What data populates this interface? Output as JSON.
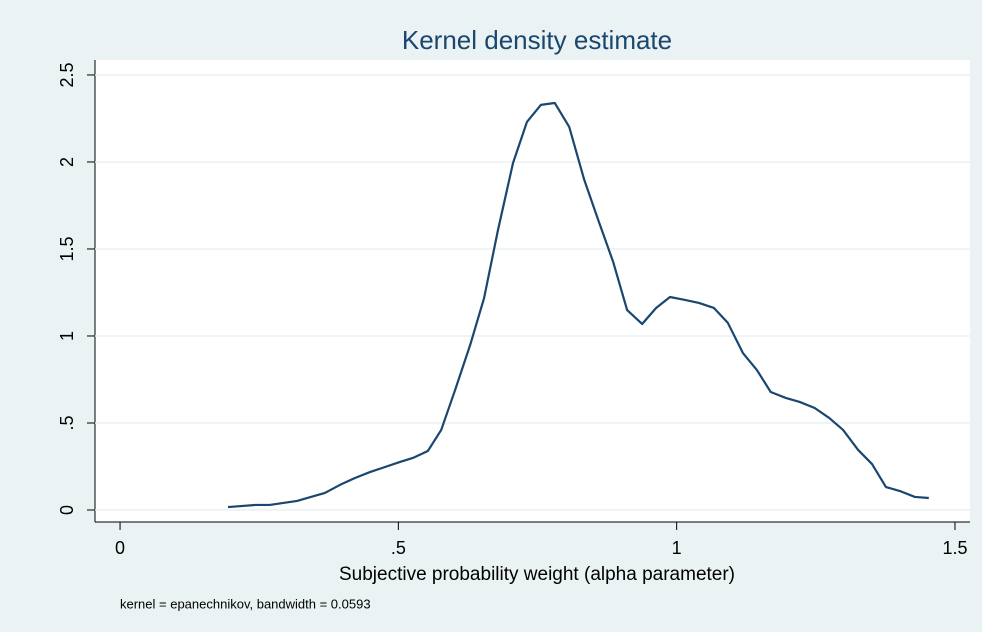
{
  "chart_data": {
    "type": "line",
    "title": "Kernel density estimate",
    "x_label": "Subjective probability weight (alpha parameter)",
    "note": "kernel = epanechnikov, bandwidth = 0.0593",
    "color": "#1a476f",
    "grid": true,
    "x": [
      0.194,
      0.243,
      0.269,
      0.318,
      0.368,
      0.395,
      0.422,
      0.449,
      0.476,
      0.503,
      0.526,
      0.553,
      0.577,
      0.602,
      0.629,
      0.654,
      0.679,
      0.706,
      0.731,
      0.756,
      0.781,
      0.807,
      0.834,
      0.859,
      0.886,
      0.911,
      0.938,
      0.963,
      0.988,
      1.015,
      1.04,
      1.067,
      1.092,
      1.119,
      1.144,
      1.169,
      1.196,
      1.221,
      1.248,
      1.274,
      1.299,
      1.326,
      1.351,
      1.376,
      1.401,
      1.428,
      1.453
    ],
    "values": [
      0.017,
      0.029,
      0.029,
      0.052,
      0.098,
      0.144,
      0.184,
      0.218,
      0.247,
      0.276,
      0.299,
      0.339,
      0.46,
      0.69,
      0.948,
      1.218,
      1.609,
      1.994,
      2.23,
      2.328,
      2.339,
      2.201,
      1.897,
      1.667,
      1.425,
      1.149,
      1.069,
      1.161,
      1.224,
      1.207,
      1.19,
      1.161,
      1.075,
      0.902,
      0.805,
      0.678,
      0.644,
      0.621,
      0.586,
      0.529,
      0.46,
      0.345,
      0.264,
      0.132,
      0.109,
      0.075,
      0.069
    ],
    "xlim": [
      -0.045,
      1.527
    ],
    "ylim": [
      -0.069,
      2.586
    ],
    "xticks": [
      0,
      {
        "value": 0.5,
        "label": ".5"
      },
      1,
      1.5
    ],
    "yticks": [
      0,
      {
        "value": 0.5,
        "label": ".5"
      },
      1,
      1.5,
      2,
      2.5
    ]
  }
}
